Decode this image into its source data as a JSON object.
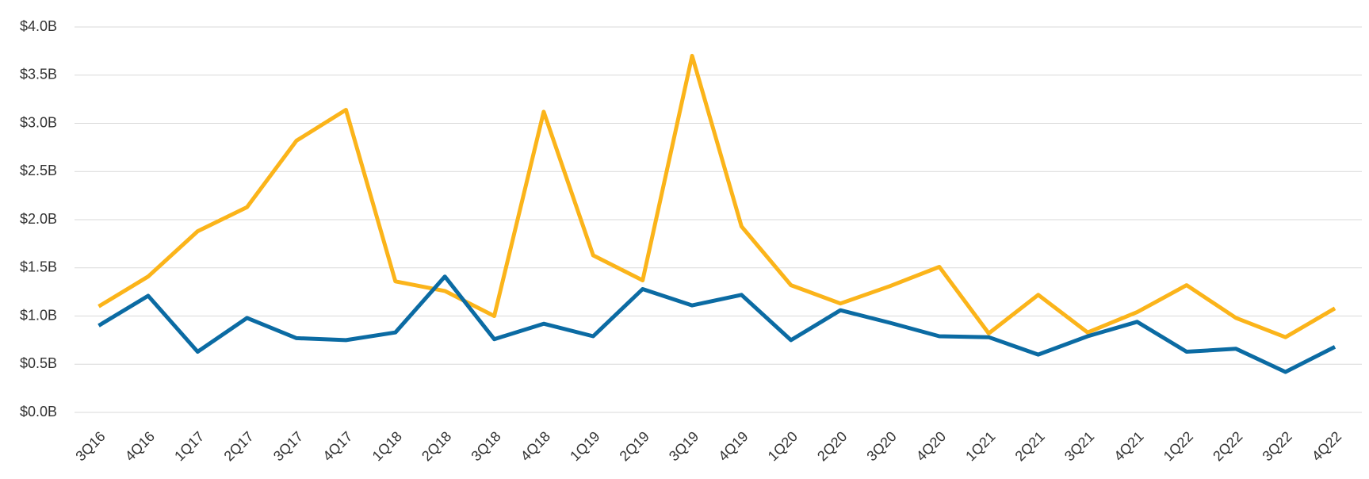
{
  "chart_data": {
    "type": "line",
    "categories": [
      "3Q16",
      "4Q16",
      "1Q17",
      "2Q17",
      "3Q17",
      "4Q17",
      "1Q18",
      "2Q18",
      "3Q18",
      "4Q18",
      "1Q19",
      "2Q19",
      "3Q19",
      "4Q19",
      "1Q20",
      "2Q20",
      "3Q20",
      "4Q20",
      "1Q21",
      "2Q21",
      "3Q21",
      "4Q21",
      "1Q22",
      "2Q22",
      "3Q22",
      "4Q22"
    ],
    "series": [
      {
        "color": "#fbb41a",
        "values": [
          1.1,
          1.41,
          1.88,
          2.13,
          2.82,
          3.14,
          1.36,
          1.26,
          1.0,
          3.12,
          1.63,
          1.37,
          3.7,
          1.93,
          1.32,
          1.13,
          1.31,
          1.51,
          0.82,
          1.22,
          0.83,
          1.04,
          1.32,
          0.98,
          0.78,
          1.08
        ]
      },
      {
        "color": "#0b6ba3",
        "values": [
          0.9,
          1.21,
          0.63,
          0.98,
          0.77,
          0.75,
          0.83,
          1.41,
          0.76,
          0.92,
          0.79,
          1.28,
          1.11,
          1.22,
          0.75,
          1.06,
          0.93,
          0.79,
          0.78,
          0.6,
          0.79,
          0.94,
          0.63,
          0.66,
          0.42,
          0.68
        ]
      }
    ],
    "ylim": [
      0,
      4
    ],
    "yticks": [
      {
        "value": 0,
        "label": "$0.0B"
      },
      {
        "value": 0.5,
        "label": "$0.5B"
      },
      {
        "value": 1,
        "label": "$1.0B"
      },
      {
        "value": 1.5,
        "label": "$1.5B"
      },
      {
        "value": 2,
        "label": "$2.0B"
      },
      {
        "value": 2.5,
        "label": "$2.5B"
      },
      {
        "value": 3,
        "label": "$3.0B"
      },
      {
        "value": 3.5,
        "label": "$3.5B"
      },
      {
        "value": 4,
        "label": "$4.0B"
      }
    ],
    "grid": true
  }
}
